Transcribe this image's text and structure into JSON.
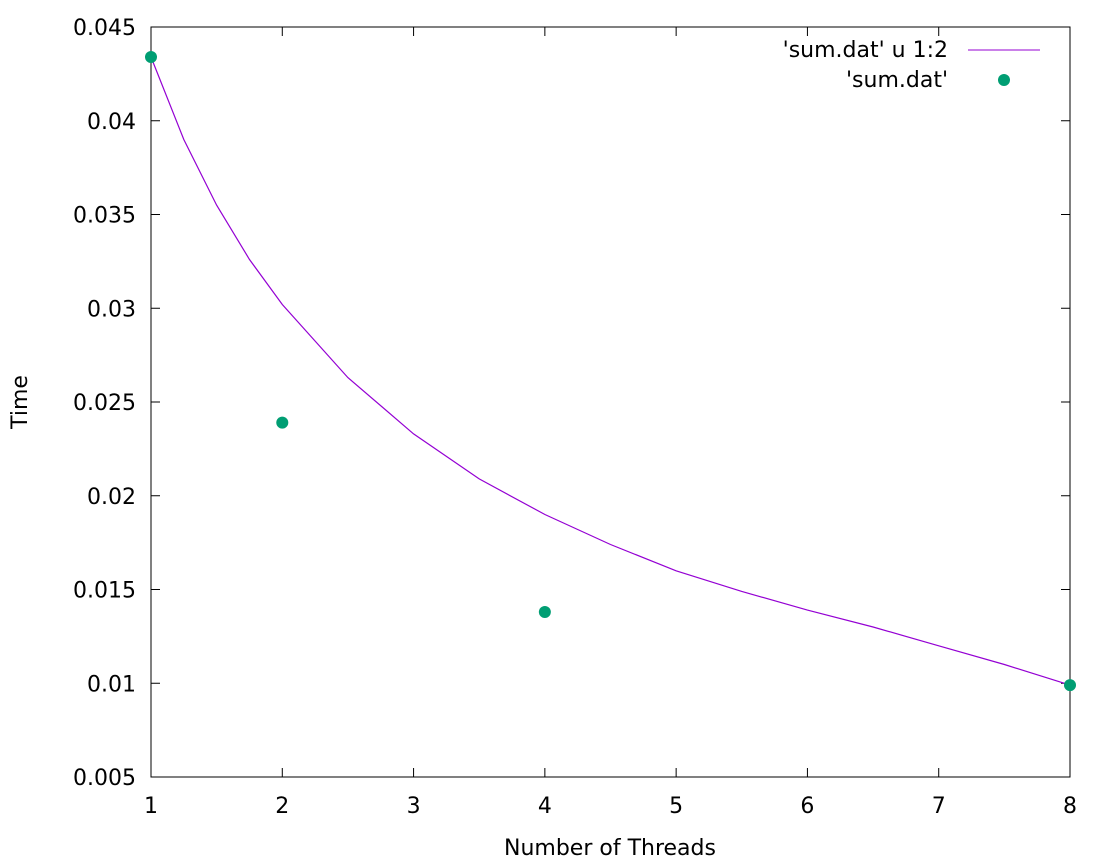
{
  "chart_data": {
    "type": "scatter",
    "title": "",
    "xlabel": "Number of Threads",
    "ylabel": "Time",
    "xlim": [
      1,
      8
    ],
    "ylim": [
      0.005,
      0.045
    ],
    "x_ticks": [
      1,
      2,
      3,
      4,
      5,
      6,
      7,
      8
    ],
    "y_ticks": [
      0.005,
      0.01,
      0.015,
      0.02,
      0.025,
      0.03,
      0.035,
      0.04,
      0.045
    ],
    "x_tick_labels": [
      "1",
      "2",
      "3",
      "4",
      "5",
      "6",
      "7",
      "8"
    ],
    "y_tick_labels": [
      "0.005",
      "0.01",
      "0.015",
      "0.02",
      "0.025",
      "0.03",
      "0.035",
      "0.04",
      "0.045"
    ],
    "grid": false,
    "legend_position": "top-right",
    "series": [
      {
        "name": "'sum.dat' u 1:2",
        "kind": "line",
        "color": "#9400d3",
        "x": [
          1,
          1.25,
          1.5,
          1.75,
          2,
          2.5,
          3,
          3.5,
          4,
          4.5,
          5,
          5.5,
          6,
          6.5,
          7,
          7.5,
          8
        ],
        "y": [
          0.0434,
          0.039,
          0.0355,
          0.0326,
          0.0302,
          0.0263,
          0.0233,
          0.0209,
          0.019,
          0.0174,
          0.016,
          0.0149,
          0.0139,
          0.013,
          0.012,
          0.011,
          0.0099
        ]
      },
      {
        "name": "'sum.dat'",
        "kind": "points",
        "color": "#009e73",
        "x": [
          1,
          2,
          4,
          8
        ],
        "y": [
          0.0434,
          0.0239,
          0.0138,
          0.0099
        ]
      }
    ]
  }
}
